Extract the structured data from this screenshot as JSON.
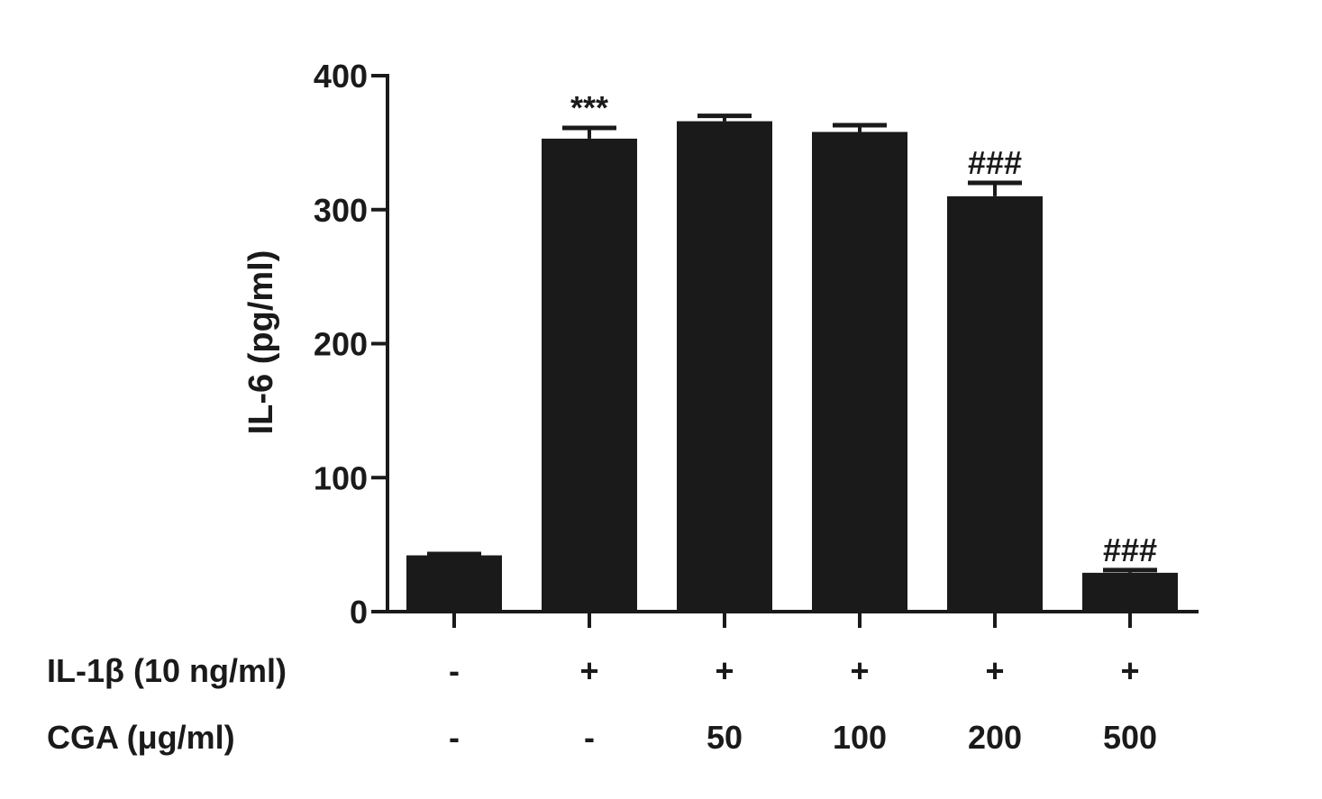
{
  "chart_data": {
    "type": "bar",
    "ylabel": "IL-6 (pg/ml)",
    "xlabel": "",
    "ylim": [
      0,
      400
    ],
    "yticks": [
      "0",
      "100",
      "200",
      "300",
      "400"
    ],
    "bar_color": "#1a1a1a",
    "bars": [
      {
        "value": 42,
        "error": 1,
        "annotation": ""
      },
      {
        "value": 353,
        "error": 8,
        "annotation": "***"
      },
      {
        "value": 366,
        "error": 4,
        "annotation": ""
      },
      {
        "value": 358,
        "error": 5,
        "annotation": ""
      },
      {
        "value": 310,
        "error": 10,
        "annotation": "###"
      },
      {
        "value": 29,
        "error": 2,
        "annotation": "###"
      }
    ],
    "condition_rows": [
      {
        "label": "IL-1β (10 ng/ml)",
        "values": [
          "-",
          "+",
          "+",
          "+",
          "+",
          "+"
        ]
      },
      {
        "label": "CGA (μg/ml)",
        "values": [
          "-",
          "-",
          "50",
          "100",
          "200",
          "500"
        ]
      }
    ],
    "grid": false,
    "legend": "none"
  }
}
